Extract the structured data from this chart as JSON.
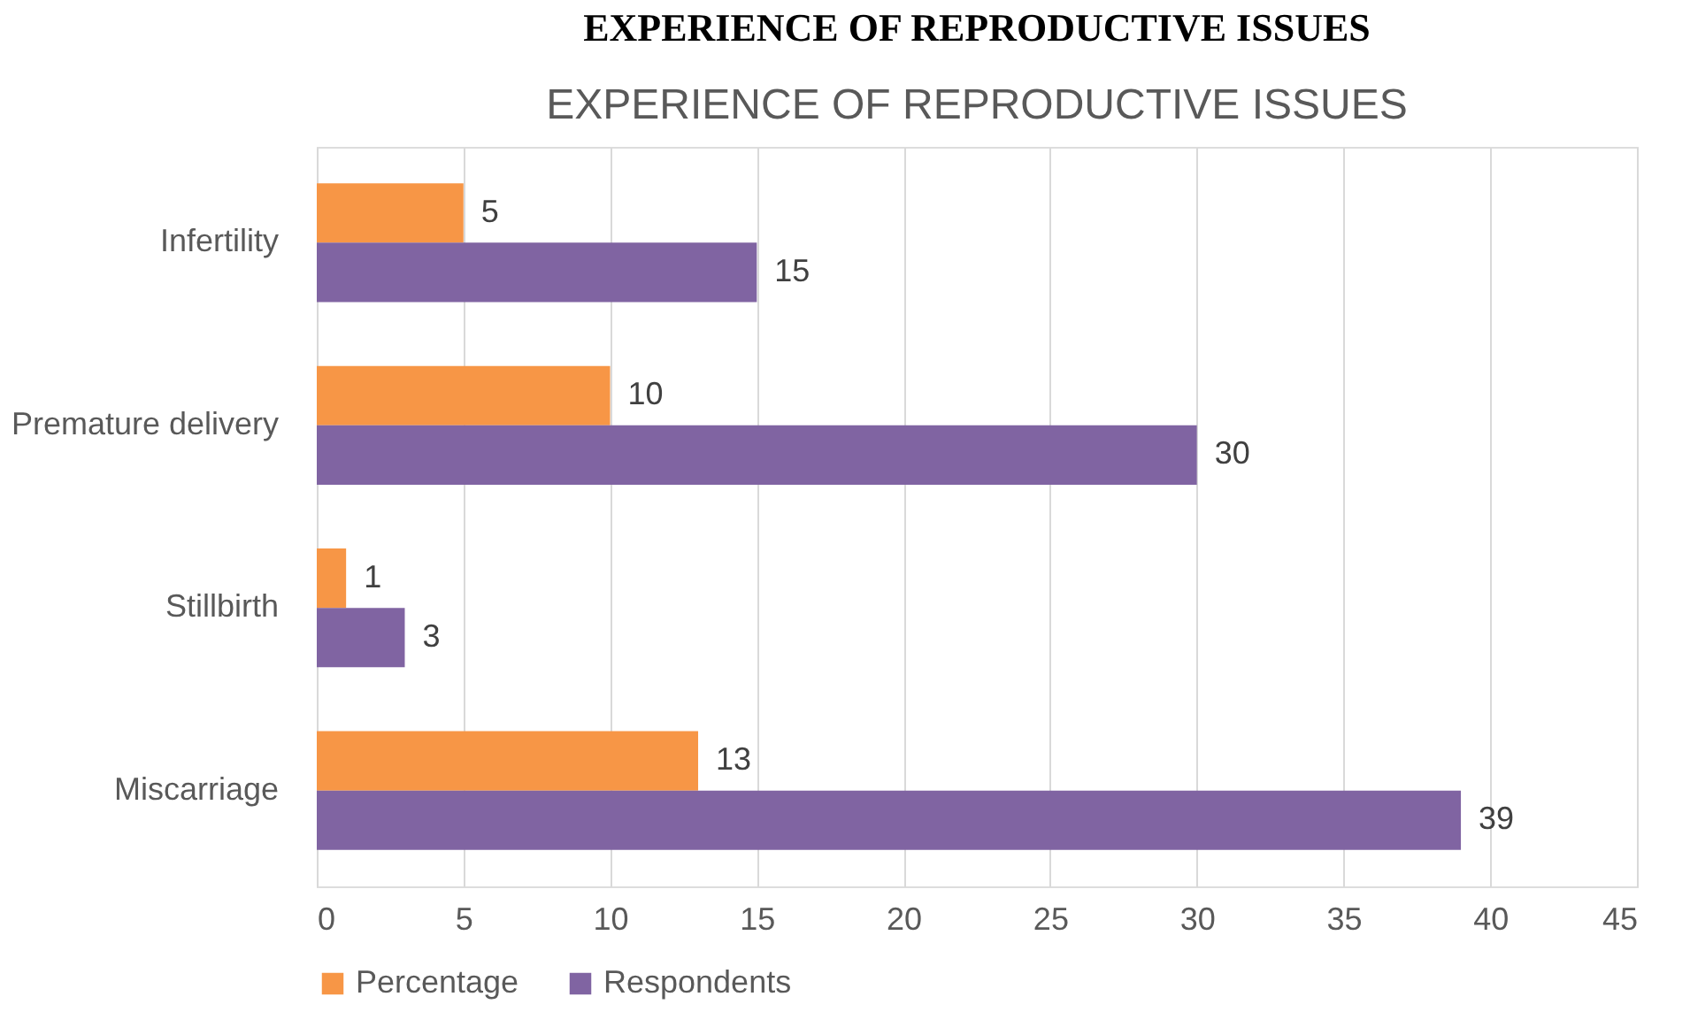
{
  "chart_data": {
    "type": "bar",
    "orientation": "horizontal",
    "title": "EXPERIENCE OF REPRODUCTIVE ISSUES",
    "annotations": [
      "EXPERIENCE OF REPRODUCTIVE ISSUES"
    ],
    "categories": [
      "Infertility",
      "Premature delivery",
      "Stillbirth",
      "Miscarriage"
    ],
    "series": [
      {
        "name": "Percentage",
        "color": "#f79646",
        "values": [
          5,
          10,
          1,
          13
        ]
      },
      {
        "name": "Respondents",
        "color": "#8064a2",
        "values": [
          15,
          30,
          3,
          39
        ]
      }
    ],
    "xlim": [
      0,
      45
    ],
    "xticks": [
      0,
      5,
      10,
      15,
      20,
      25,
      30,
      35,
      40,
      45
    ],
    "grid": "x",
    "legend": "bottom",
    "data_labels": true
  }
}
